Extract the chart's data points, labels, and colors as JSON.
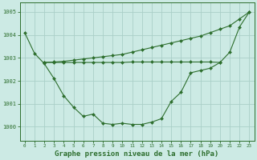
{
  "title": "Graphe pression niveau de la mer (hPa)",
  "bg_color": "#cceae4",
  "grid_color": "#aacfc8",
  "line_color": "#2d6e2d",
  "ylim": [
    999.4,
    1005.4
  ],
  "xlim": [
    -0.5,
    23.5
  ],
  "yticks": [
    1000,
    1001,
    1002,
    1003,
    1004,
    1005
  ],
  "xticks": [
    0,
    1,
    2,
    3,
    4,
    5,
    6,
    7,
    8,
    9,
    10,
    11,
    12,
    13,
    14,
    15,
    16,
    17,
    18,
    19,
    20,
    21,
    22,
    23
  ],
  "line1_x": [
    0,
    1,
    2,
    3,
    4,
    5,
    6,
    7,
    8,
    9,
    10,
    11,
    12,
    13,
    14,
    15,
    16,
    17,
    18,
    19,
    20,
    21,
    22,
    23
  ],
  "line1_y": [
    1004.1,
    1003.2,
    1002.75,
    1002.1,
    1001.35,
    1000.85,
    1000.45,
    1000.55,
    1000.15,
    1000.1,
    1000.15,
    1000.1,
    1000.1,
    1000.2,
    1000.35,
    1001.1,
    1001.5,
    1002.35,
    1002.45,
    1002.55,
    1002.8,
    1003.25,
    1004.35,
    1005.0
  ],
  "line2_x": [
    2,
    3,
    4,
    5,
    6,
    7,
    8,
    9,
    10,
    11,
    12,
    13,
    14,
    15,
    16,
    17,
    18,
    19,
    20
  ],
  "line2_y": [
    1002.8,
    1002.8,
    1002.8,
    1002.8,
    1002.8,
    1002.8,
    1002.8,
    1002.8,
    1002.8,
    1002.82,
    1002.82,
    1002.82,
    1002.82,
    1002.82,
    1002.82,
    1002.82,
    1002.82,
    1002.82,
    1002.8
  ],
  "line3_x": [
    2,
    3,
    4,
    5,
    6,
    7,
    8,
    9,
    10,
    11,
    12,
    13,
    14,
    15,
    16,
    17,
    18,
    19,
    20,
    21,
    22,
    23
  ],
  "line3_y": [
    1002.8,
    1002.82,
    1002.85,
    1002.9,
    1002.95,
    1003.0,
    1003.05,
    1003.1,
    1003.15,
    1003.25,
    1003.35,
    1003.45,
    1003.55,
    1003.65,
    1003.75,
    1003.85,
    1003.95,
    1004.1,
    1004.25,
    1004.4,
    1004.7,
    1005.0
  ]
}
